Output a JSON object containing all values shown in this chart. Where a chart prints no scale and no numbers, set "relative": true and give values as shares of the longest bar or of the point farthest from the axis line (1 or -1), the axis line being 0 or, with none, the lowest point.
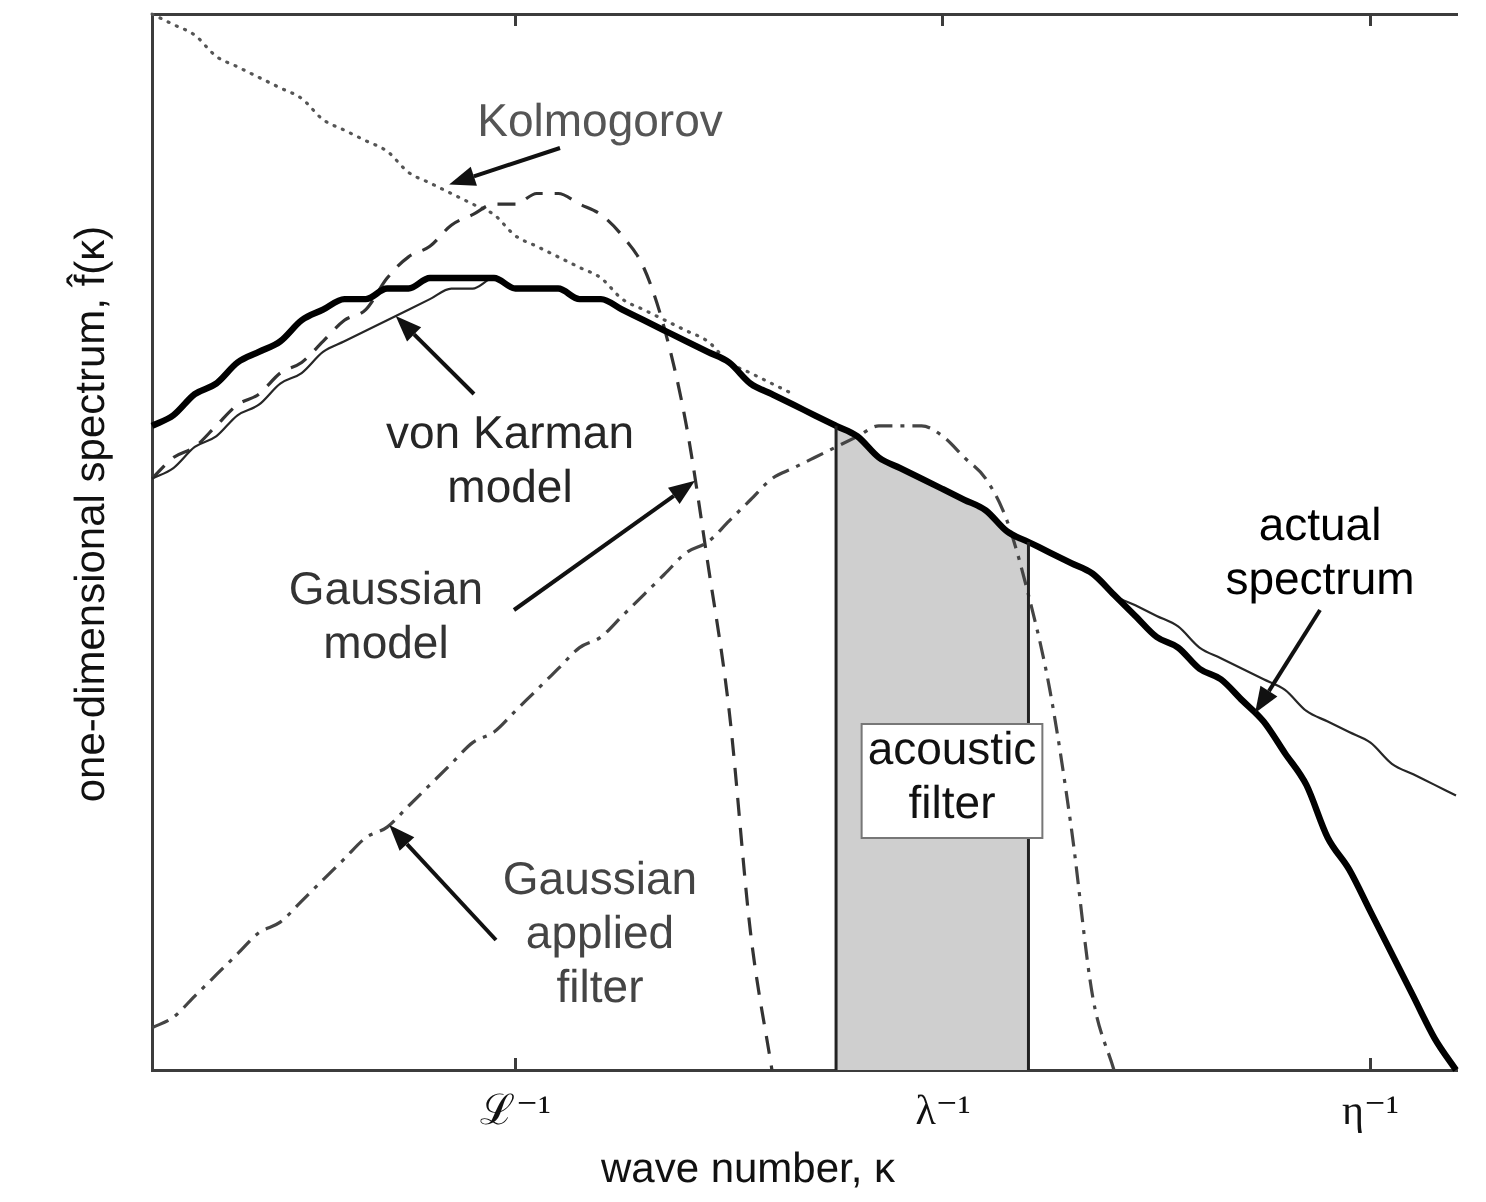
{
  "chart_data": {
    "type": "line",
    "relative": true,
    "xlabel": "wave number, κ",
    "ylabel": "one-dimensional spectrum, f̂(κ)",
    "grid": false,
    "legend": false,
    "marker": "none",
    "categories": [
      null,
      null,
      null,
      null,
      null,
      null,
      null,
      null,
      null,
      null,
      null,
      null,
      null,
      null,
      null,
      null,
      null,
      "ℒ⁻¹",
      null,
      null,
      null,
      null,
      null,
      null,
      null,
      null,
      null,
      null,
      null,
      null,
      null,
      null,
      null,
      null,
      null,
      null,
      null,
      "λ⁻¹",
      null,
      null,
      null,
      null,
      null,
      null,
      null,
      null,
      null,
      null,
      null,
      null,
      null,
      null,
      null,
      null,
      null,
      null,
      null,
      "η⁻¹",
      null,
      null,
      null,
      null
    ],
    "series": [
      {
        "name": "actual spectrum",
        "color": "#000000",
        "line_style": "solid",
        "values": [
          0.61,
          0.62,
          0.64,
          0.65,
          0.67,
          0.68,
          0.69,
          0.71,
          0.72,
          0.73,
          0.73,
          0.74,
          0.74,
          0.75,
          0.75,
          0.75,
          0.75,
          0.74,
          0.74,
          0.74,
          0.73,
          0.73,
          0.72,
          0.71,
          0.7,
          0.69,
          0.68,
          0.67,
          0.65,
          0.64,
          0.63,
          0.62,
          0.61,
          0.6,
          0.58,
          0.57,
          0.56,
          0.55,
          0.54,
          0.53,
          0.51,
          0.5,
          0.49,
          0.48,
          0.47,
          0.45,
          0.43,
          0.41,
          0.4,
          0.38,
          0.37,
          0.35,
          0.33,
          0.3,
          0.27,
          0.22,
          0.19,
          0.15,
          0.11,
          0.07,
          0.03,
          0
        ]
      },
      {
        "name": "von Karman model",
        "color": "#262626",
        "line_style": "solid",
        "values": [
          0.56,
          0.57,
          0.59,
          0.6,
          0.62,
          0.63,
          0.65,
          0.66,
          0.68,
          0.69,
          0.7,
          0.71,
          0.72,
          0.73,
          0.74,
          0.74,
          0.75,
          0.74,
          0.74,
          0.74,
          0.73,
          0.73,
          0.72,
          0.71,
          0.7,
          0.69,
          0.68,
          0.67,
          0.65,
          0.64,
          0.63,
          0.62,
          0.61,
          0.6,
          0.58,
          0.57,
          0.56,
          0.55,
          0.54,
          0.53,
          0.51,
          0.5,
          0.49,
          0.48,
          0.47,
          0.45,
          0.44,
          0.43,
          0.42,
          0.4,
          0.39,
          0.38,
          0.37,
          0.36,
          0.34,
          0.33,
          0.32,
          0.31,
          0.29,
          0.28,
          0.27,
          0.26
        ]
      },
      {
        "name": "Gaussian model",
        "color": "#333333",
        "line_style": "dashed",
        "values": [
          0.56,
          0.58,
          0.59,
          0.61,
          0.63,
          0.64,
          0.66,
          0.67,
          0.69,
          0.71,
          0.72,
          0.75,
          0.77,
          0.78,
          0.8,
          0.81,
          0.82,
          0.82,
          0.83,
          0.83,
          0.82,
          0.81,
          0.79,
          0.76,
          0.7,
          0.61,
          0.48,
          0.34,
          0.13,
          0,
          null,
          null,
          null,
          null,
          null,
          null,
          null,
          null,
          null,
          null,
          null,
          null,
          null,
          null,
          null,
          null,
          null,
          null,
          null,
          null,
          null,
          null,
          null,
          null,
          null,
          null,
          null,
          null,
          null,
          null,
          null,
          null
        ]
      },
      {
        "name": "Kolmogorov",
        "color": "#555555",
        "line_style": "dotted",
        "values": [
          1,
          0.99,
          0.98,
          0.96,
          0.95,
          0.94,
          0.93,
          0.92,
          0.9,
          0.89,
          0.88,
          0.87,
          0.85,
          0.84,
          0.83,
          0.82,
          0.81,
          0.79,
          0.78,
          0.77,
          0.76,
          0.75,
          0.73,
          0.72,
          0.71,
          0.7,
          0.69,
          0.67,
          0.66,
          0.65,
          0.64,
          null,
          null,
          null,
          null,
          null,
          null,
          null,
          null,
          null,
          null,
          null,
          null,
          null,
          null,
          null,
          null,
          null,
          null,
          null,
          null,
          null,
          null,
          null,
          null,
          null,
          null,
          null,
          null,
          null,
          null,
          null
        ]
      },
      {
        "name": "Gaussian applied filter",
        "color": "#444444",
        "line_style": "dashdot",
        "values": [
          0.04,
          0.05,
          0.07,
          0.09,
          0.11,
          0.13,
          0.14,
          0.16,
          0.18,
          0.2,
          0.22,
          0.23,
          0.25,
          0.27,
          0.29,
          0.31,
          0.32,
          0.34,
          0.36,
          0.38,
          0.4,
          0.41,
          0.43,
          0.45,
          0.47,
          0.49,
          0.5,
          0.52,
          0.54,
          0.56,
          0.57,
          0.58,
          0.59,
          0.6,
          0.61,
          0.61,
          0.61,
          0.6,
          0.58,
          0.56,
          0.52,
          0.45,
          0.36,
          0.23,
          0.07,
          0,
          null,
          null,
          null,
          null,
          null,
          null,
          null,
          null,
          null,
          null,
          null,
          null,
          null,
          null,
          null,
          null
        ]
      },
      {
        "name": "acoustic filter",
        "type": "area",
        "color": "#cfcfcf",
        "values": [
          null,
          null,
          null,
          null,
          null,
          null,
          null,
          null,
          null,
          null,
          null,
          null,
          null,
          null,
          null,
          null,
          null,
          null,
          null,
          null,
          null,
          null,
          null,
          null,
          null,
          null,
          null,
          null,
          null,
          null,
          null,
          null,
          0.61,
          0.6,
          0.58,
          0.57,
          0.56,
          0.55,
          0.54,
          0.53,
          0.51,
          0.5,
          null,
          null,
          null,
          null,
          null,
          null,
          null,
          null,
          null,
          null,
          null,
          null,
          null,
          null,
          null,
          null,
          null,
          null,
          null,
          null
        ]
      }
    ]
  }
}
